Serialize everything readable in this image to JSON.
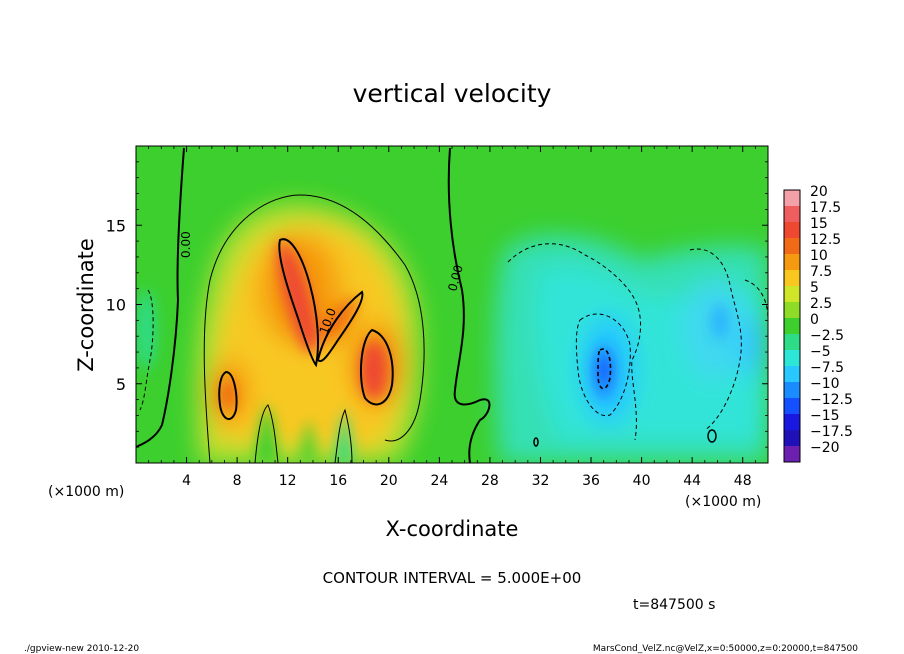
{
  "chart_data": {
    "type": "heatmap",
    "title": "vertical velocity",
    "xlabel": "X-coordinate",
    "ylabel": "Z-coordinate",
    "x_unit_label": "(×1000 m)",
    "y_unit_label": "(×1000 m)",
    "xlim": [
      0,
      50
    ],
    "ylim": [
      0,
      20
    ],
    "x_ticks": [
      4,
      8,
      12,
      16,
      20,
      24,
      28,
      32,
      36,
      40,
      44,
      48
    ],
    "y_ticks": [
      5,
      10,
      15
    ],
    "colorbar": {
      "levels": [
        "20",
        "17.5",
        "15",
        "12.5",
        "10",
        "7.5",
        "5",
        "2.5",
        "0",
        "−2.5",
        "−5",
        "−7.5",
        "−10",
        "−12.5",
        "−15",
        "−17.5",
        "−20"
      ],
      "colors": [
        "#f4a0a8",
        "#ef5e5e",
        "#ee4830",
        "#f06a18",
        "#f59a10",
        "#f8c820",
        "#cfe52a",
        "#8fdc28",
        "#3ccf2e",
        "#2edc88",
        "#2ee6d8",
        "#28c8ff",
        "#1a8cff",
        "#1450ff",
        "#1818e0",
        "#2010b8",
        "#6c20b0"
      ]
    },
    "features": [
      {
        "kind": "updraft",
        "x": 12.5,
        "z": 12.5,
        "value": 14
      },
      {
        "kind": "updraft",
        "x": 15.5,
        "z": 9.5,
        "value": 11
      },
      {
        "kind": "updraft",
        "x": 18.8,
        "z": 5.5,
        "value": 13
      },
      {
        "kind": "updraft",
        "x": 7.5,
        "z": 4.2,
        "value": 12
      },
      {
        "kind": "downdraft",
        "x": 37,
        "z": 6,
        "value": -11
      },
      {
        "kind": "downdraft",
        "x": 46,
        "z": 8,
        "value": -7
      },
      {
        "kind": "downdraft",
        "x": 39,
        "z": 9,
        "value": -5
      }
    ],
    "contour_labels": [
      "0.00",
      "0.00",
      "10.0"
    ],
    "contour_interval_text": "CONTOUR INTERVAL = 5.000E+00",
    "time_text": "t=847500 s"
  },
  "footer": {
    "left": "./gpview-new  2010-12-20",
    "right": "MarsCond_VelZ.nc@VelZ,x=0:50000,z=0:20000,t=847500"
  }
}
